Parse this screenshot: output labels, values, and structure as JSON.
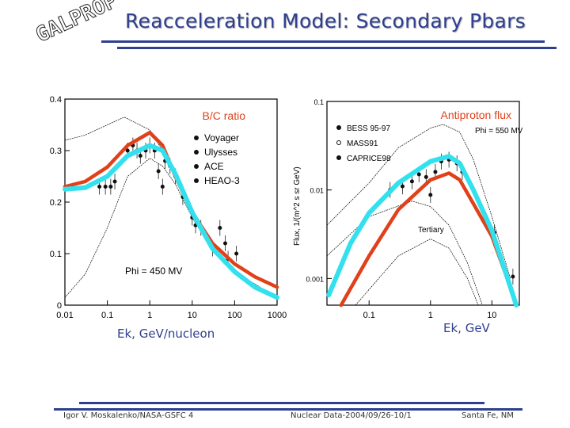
{
  "header": {
    "title": "Reacceleration Model: Secondary Pbars",
    "logo": "GALPROP"
  },
  "footer": {
    "author": "Igor V. Moskalenko/NASA-GSFC  4",
    "conference": "Nuclear Data-2004/09/26-10/1",
    "location": "Santa Fe, NM"
  },
  "colors": {
    "accent": "#2e3f8f",
    "red_curve": "#e0401a",
    "cyan_curve": "#33e0ee"
  },
  "chart_data": [
    {
      "type": "line",
      "title": "B/C ratio",
      "xlabel": "Ek, GeV/nucleon",
      "ylabel": "",
      "xscale": "log",
      "xlim": [
        0.01,
        1000
      ],
      "ylim": [
        0,
        0.4
      ],
      "xticks": [
        "0.01",
        "0.1",
        "1",
        "10",
        "100",
        "1000"
      ],
      "yticks": [
        "0",
        "0.1",
        "0.2",
        "0.3",
        "0.4"
      ],
      "annotation": "Phi = 450 MV",
      "legend": [
        "Voyager",
        "Ulysses",
        "ACE",
        "HEAO-3"
      ],
      "legend_position": "top-right",
      "series": [
        {
          "color": "#e0401a",
          "x": [
            0.01,
            0.03,
            0.1,
            0.3,
            1,
            2,
            4,
            10,
            30,
            100,
            300,
            1000
          ],
          "y": [
            0.23,
            0.24,
            0.268,
            0.31,
            0.335,
            0.31,
            0.25,
            0.18,
            0.12,
            0.08,
            0.055,
            0.035
          ]
        },
        {
          "color": "#33e0ee",
          "x": [
            0.01,
            0.03,
            0.1,
            0.3,
            1,
            2,
            4,
            10,
            30,
            100,
            300,
            1000
          ],
          "y": [
            0.225,
            0.228,
            0.25,
            0.29,
            0.31,
            0.3,
            0.255,
            0.18,
            0.11,
            0.065,
            0.035,
            0.015
          ]
        },
        {
          "color": "#000",
          "thin": true,
          "x": [
            0.01,
            0.03,
            0.1,
            0.25,
            1,
            2,
            4,
            10,
            30,
            100,
            1000
          ],
          "y": [
            0.32,
            0.33,
            0.35,
            0.365,
            0.34,
            0.3,
            0.25,
            0.18,
            0.11,
            0.065,
            0.015
          ]
        },
        {
          "color": "#000",
          "thin": true,
          "x": [
            0.01,
            0.03,
            0.1,
            0.3,
            1,
            2,
            4,
            10,
            30,
            100,
            1000
          ],
          "y": [
            0.015,
            0.06,
            0.15,
            0.25,
            0.285,
            0.27,
            0.235,
            0.17,
            0.105,
            0.06,
            0.015
          ]
        }
      ],
      "points": {
        "x": [
          0.065,
          0.09,
          0.12,
          0.15,
          0.3,
          0.4,
          0.5,
          0.6,
          0.8,
          1,
          1.3,
          1.6,
          2,
          2.3,
          3,
          4,
          6,
          10,
          12,
          16,
          30,
          45,
          60,
          70,
          110
        ],
        "y": [
          0.23,
          0.23,
          0.23,
          0.24,
          0.3,
          0.31,
          0.3,
          0.29,
          0.3,
          0.31,
          0.3,
          0.26,
          0.23,
          0.28,
          0.27,
          0.25,
          0.21,
          0.17,
          0.155,
          0.15,
          0.11,
          0.15,
          0.12,
          0.09,
          0.1
        ]
      }
    },
    {
      "type": "line",
      "title": "Antiproton flux",
      "xlabel": "Ek, GeV",
      "ylabel": "Flux, 1/(m^2 s sr GeV)",
      "xscale": "log",
      "yscale": "log",
      "xlim": [
        0.0206,
        28
      ],
      "ylim": [
        0.0005,
        0.1
      ],
      "xticks": [
        "0.1",
        "1",
        "10"
      ],
      "yticks": [
        "0.001",
        "0.01",
        "0.1"
      ],
      "annotation": "Phi = 550 MV",
      "annotation2": "Tertiary",
      "legend": [
        "BESS 95-97",
        "MASS91",
        "CAPRICE98"
      ],
      "legend_position": "top-left",
      "series": [
        {
          "color": "#e0401a",
          "x": [
            0.035,
            0.1,
            0.3,
            1,
            2,
            3,
            5,
            10,
            20,
            25
          ],
          "y": [
            0.0005,
            0.0018,
            0.006,
            0.013,
            0.0155,
            0.013,
            0.007,
            0.003,
            0.0008,
            0.0005
          ]
        },
        {
          "color": "#33e0ee",
          "x": [
            0.022,
            0.05,
            0.1,
            0.3,
            1,
            2,
            3,
            5,
            10,
            20,
            25
          ],
          "y": [
            0.00065,
            0.0025,
            0.0055,
            0.012,
            0.021,
            0.024,
            0.02,
            0.01,
            0.0035,
            0.0008,
            0.0005
          ]
        },
        {
          "color": "#000",
          "thin": true,
          "x": [
            0.0206,
            0.1,
            0.3,
            1,
            1.6,
            3,
            5,
            10,
            20
          ],
          "y": [
            0.004,
            0.012,
            0.03,
            0.05,
            0.055,
            0.045,
            0.022,
            0.005,
            0.001
          ]
        },
        {
          "color": "#000",
          "thin": true,
          "x": [
            0.0206,
            0.1,
            0.5,
            1,
            2,
            4,
            7
          ],
          "y": [
            0.0018,
            0.005,
            0.0075,
            0.0065,
            0.004,
            0.0015,
            0.0005
          ]
        },
        {
          "color": "#000",
          "thin": true,
          "x": [
            0.06,
            0.3,
            1,
            2,
            4,
            6
          ],
          "y": [
            0.0005,
            0.0018,
            0.0028,
            0.0022,
            0.001,
            0.0005
          ]
        }
      ],
      "points": {
        "x": [
          0.22,
          0.35,
          0.5,
          0.65,
          0.85,
          1,
          1.2,
          1.5,
          2,
          2.7,
          3.3,
          11,
          22
        ],
        "y": [
          0.01,
          0.011,
          0.0125,
          0.015,
          0.014,
          0.0088,
          0.016,
          0.021,
          0.022,
          0.02,
          0.016,
          0.0033,
          0.00105
        ]
      }
    }
  ]
}
